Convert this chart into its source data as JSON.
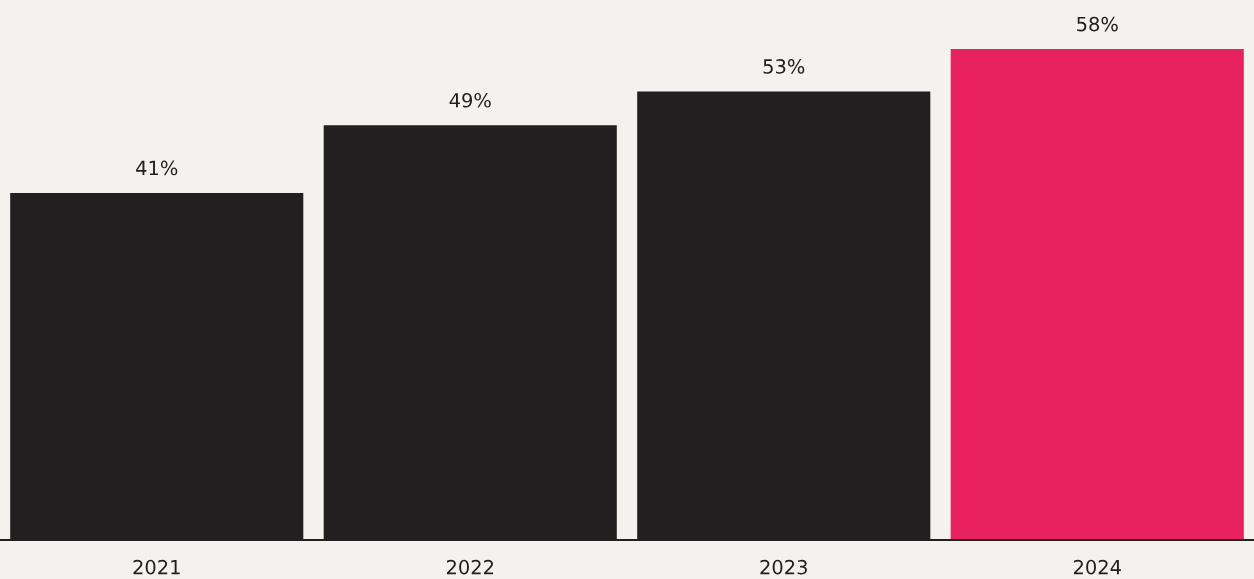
{
  "chart_data": {
    "type": "bar",
    "categories": [
      "2021",
      "2022",
      "2023",
      "2024"
    ],
    "values": [
      41,
      49,
      53,
      58
    ],
    "colors": [
      "#231f20",
      "#231f20",
      "#231f20",
      "#e8215f"
    ],
    "value_labels": [
      "41%",
      "49%",
      "53%",
      "58%"
    ],
    "grid": false,
    "legend": false
  }
}
